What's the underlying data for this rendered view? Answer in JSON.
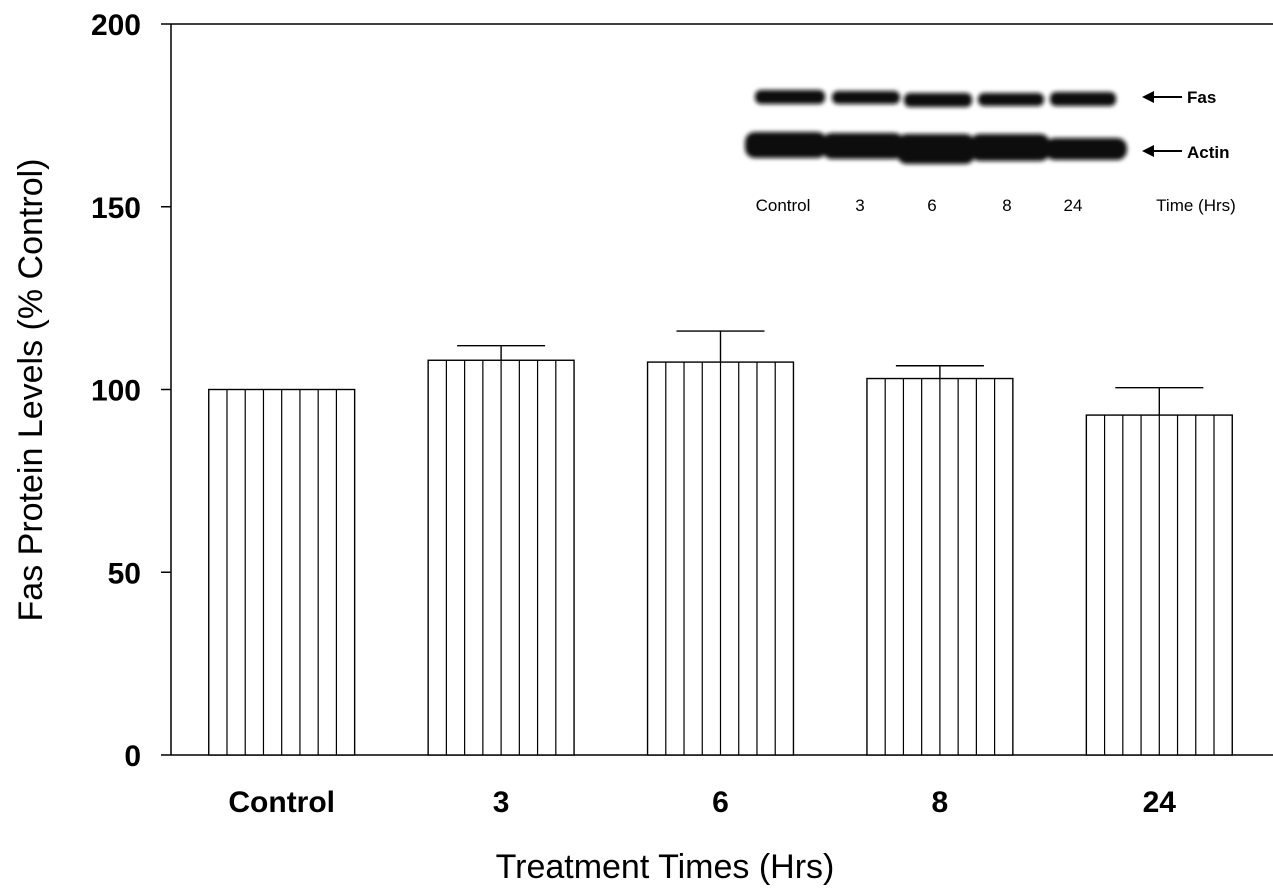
{
  "chart_data": {
    "type": "bar",
    "categories": [
      "Control",
      "3",
      "6",
      "8",
      "24"
    ],
    "values": [
      100,
      108,
      107.5,
      103,
      93
    ],
    "errors": [
      0,
      4,
      8.5,
      3.5,
      7.5
    ],
    "xlabel": "Treatment Times (Hrs)",
    "ylabel": "Fas Protein Levels (% Control)",
    "ylim": [
      0,
      200
    ],
    "yticks": [
      0,
      50,
      100,
      150,
      200
    ],
    "bar_fill": "vertical-hatch",
    "grid": false,
    "colors": {
      "bar_stroke": "#000000",
      "bar_fill": "#ffffff",
      "blot": "#111111"
    },
    "inset": {
      "type": "western-blot",
      "bands": [
        "Fas",
        "Actin"
      ],
      "lanes": [
        "Control",
        "3",
        "6",
        "8",
        "24"
      ],
      "lane_axis_label": "Time (Hrs)"
    }
  }
}
